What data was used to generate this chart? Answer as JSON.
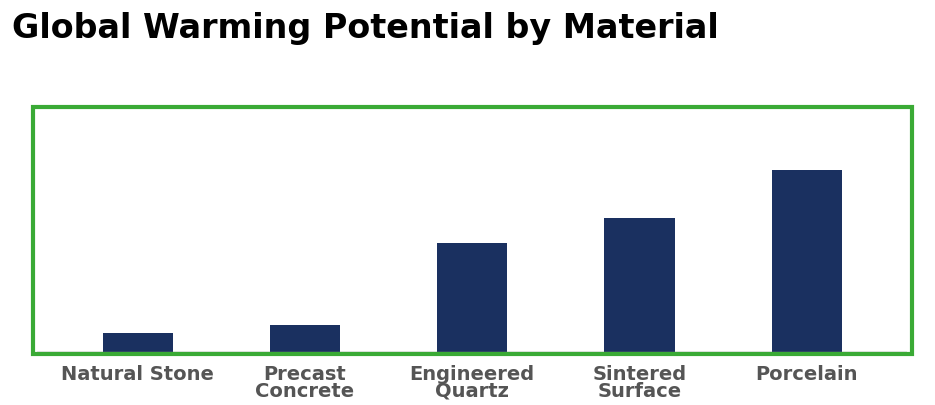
{
  "title": "Global Warming Potential by Material",
  "categories": [
    "Natural Stone",
    "Precast\nConcrete",
    "Engineered\nQuartz",
    "Sintered\nSurface",
    "Porcelain"
  ],
  "values": [
    8,
    11,
    45,
    55,
    75
  ],
  "bar_color": "#1a3060",
  "background_color": "#ffffff",
  "plot_bg_color": "#ffffff",
  "border_color": "#3aaa35",
  "grid_color": "#c8c8c8",
  "title_fontsize": 24,
  "label_fontsize": 14,
  "ylim": [
    0,
    100
  ],
  "bar_width": 0.42
}
